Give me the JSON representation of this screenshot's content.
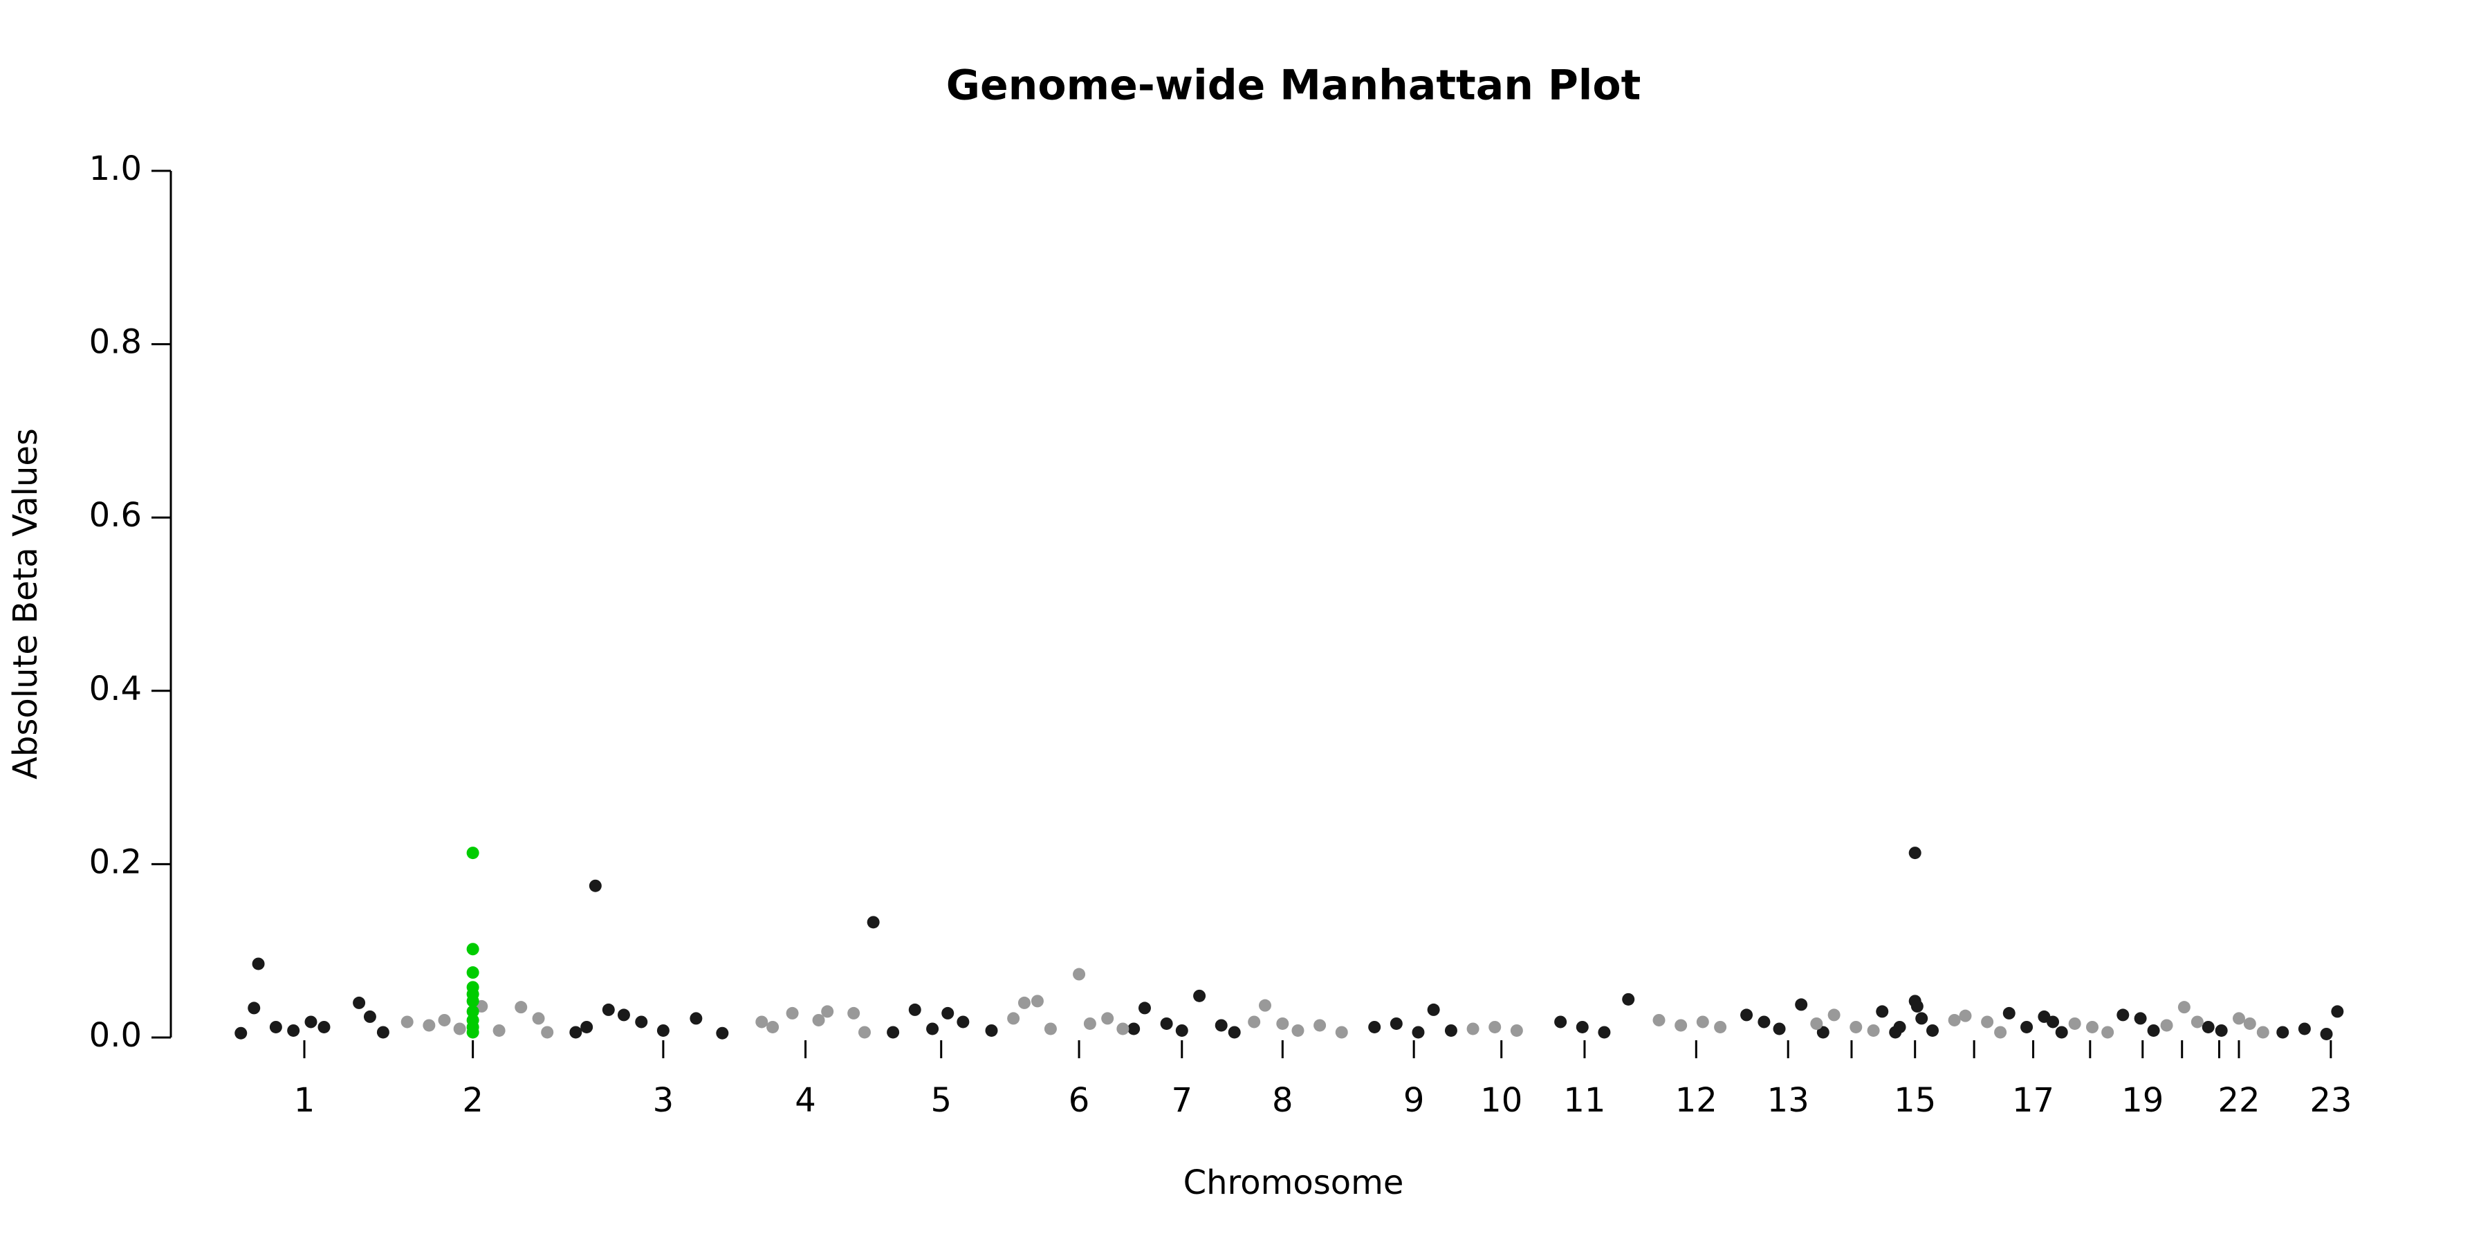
{
  "chart_data": {
    "type": "scatter",
    "title": "Genome-wide Manhattan Plot",
    "x_label": "Chromosome",
    "y_label": "Absolute Beta Values",
    "xlim": [
      0,
      1000
    ],
    "ylim": [
      0,
      1.0
    ],
    "yticks": [
      {
        "value": 0,
        "label": "0.0"
      },
      0.2,
      0.4,
      0.6,
      0.8,
      {
        "value": 1.0,
        "label": "1.0"
      }
    ],
    "xticks": [
      {
        "value": 61,
        "label": "1"
      },
      {
        "value": 138,
        "label": "2"
      },
      {
        "value": 225,
        "label": "3"
      },
      {
        "value": 290,
        "label": "4"
      },
      {
        "value": 352,
        "label": "5"
      },
      {
        "value": 415,
        "label": "6"
      },
      {
        "value": 462,
        "label": "7"
      },
      {
        "value": 508,
        "label": "8"
      },
      {
        "value": 568,
        "label": "9"
      },
      {
        "value": 608,
        "label": "10"
      },
      {
        "value": 646,
        "label": "11"
      },
      {
        "value": 697,
        "label": "12"
      },
      {
        "value": 739,
        "label": "13"
      },
      {
        "value": 768,
        "label": null
      },
      {
        "value": 797,
        "label": "15"
      },
      {
        "value": 824,
        "label": null
      },
      {
        "value": 851,
        "label": "17"
      },
      {
        "value": 877,
        "label": null
      },
      {
        "value": 901,
        "label": "19"
      },
      {
        "value": 919,
        "label": null
      },
      {
        "value": 936,
        "label": null
      },
      {
        "value": 945,
        "label": "22"
      },
      {
        "value": 987,
        "label": "23"
      }
    ],
    "series": [
      {
        "color": "#1a1a1a",
        "x": [
          32,
          38,
          40,
          48,
          56,
          64,
          70,
          86,
          91,
          97,
          185,
          190,
          194,
          200,
          207,
          215,
          225,
          240,
          252,
          321,
          330,
          340,
          348,
          355,
          362,
          375,
          440,
          445,
          455,
          462,
          470,
          480,
          486,
          550,
          560,
          570,
          577,
          585,
          635,
          645,
          655,
          666,
          720,
          728,
          735,
          745,
          755,
          782,
          790,
          797,
          797,
          798,
          800,
          805,
          788,
          840,
          848,
          856,
          860,
          864,
          892,
          900,
          906,
          931,
          937,
          965,
          975,
          985,
          990
        ],
        "values": [
          0.005,
          0.034,
          0.085,
          0.012,
          0.008,
          0.018,
          0.012,
          0.04,
          0.024,
          0.006,
          0.006,
          0.012,
          0.175,
          0.032,
          0.026,
          0.018,
          0.008,
          0.022,
          0.005,
          0.133,
          0.006,
          0.032,
          0.01,
          0.028,
          0.018,
          0.008,
          0.01,
          0.034,
          0.016,
          0.008,
          0.048,
          0.014,
          0.006,
          0.012,
          0.016,
          0.006,
          0.032,
          0.008,
          0.018,
          0.012,
          0.006,
          0.044,
          0.026,
          0.018,
          0.01,
          0.038,
          0.006,
          0.03,
          0.012,
          0.213,
          0.042,
          0.036,
          0.022,
          0.008,
          0.006,
          0.028,
          0.012,
          0.024,
          0.018,
          0.006,
          0.026,
          0.022,
          0.008,
          0.012,
          0.008,
          0.006,
          0.01,
          0.004,
          0.03
        ]
      },
      {
        "color": "#999999",
        "x": [
          108,
          118,
          125,
          132,
          142,
          150,
          160,
          168,
          172,
          270,
          275,
          284,
          296,
          300,
          312,
          317,
          385,
          390,
          396,
          402,
          415,
          420,
          428,
          435,
          495,
          500,
          508,
          515,
          525,
          535,
          595,
          605,
          615,
          680,
          690,
          700,
          708,
          752,
          760,
          770,
          778,
          815,
          820,
          830,
          836,
          870,
          878,
          885,
          912,
          920,
          926,
          945,
          950,
          956
        ],
        "values": [
          0.018,
          0.014,
          0.02,
          0.01,
          0.036,
          0.008,
          0.035,
          0.022,
          0.006,
          0.018,
          0.012,
          0.028,
          0.02,
          0.03,
          0.028,
          0.006,
          0.022,
          0.04,
          0.042,
          0.01,
          0.073,
          0.016,
          0.022,
          0.01,
          0.018,
          0.037,
          0.016,
          0.008,
          0.014,
          0.006,
          0.01,
          0.012,
          0.008,
          0.02,
          0.014,
          0.018,
          0.012,
          0.016,
          0.026,
          0.012,
          0.008,
          0.02,
          0.025,
          0.018,
          0.006,
          0.016,
          0.012,
          0.006,
          0.014,
          0.035,
          0.018,
          0.022,
          0.016,
          0.006
        ]
      },
      {
        "color": "#00cc00",
        "x": [
          138,
          138,
          138,
          138,
          138,
          138,
          138,
          138,
          138,
          138
        ],
        "values": [
          0.213,
          0.102,
          0.075,
          0.058,
          0.05,
          0.042,
          0.03,
          0.02,
          0.012,
          0.006
        ]
      }
    ]
  }
}
